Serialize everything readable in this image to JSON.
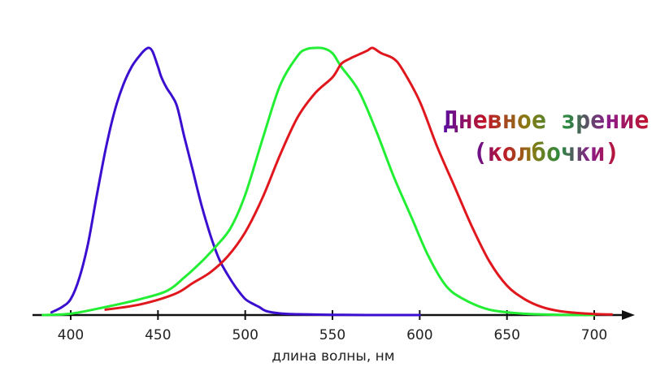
{
  "chart_data": {
    "type": "line",
    "title": "",
    "xlabel": "длина волны, нм",
    "ylabel": "",
    "xlim": [
      380,
      720
    ],
    "ylim": [
      0,
      1
    ],
    "xticks": [
      400,
      450,
      500,
      550,
      600,
      650,
      700
    ],
    "grid": false,
    "legend": "none",
    "annotation": {
      "line1": "Дневное зрение",
      "line2": "(колбочки)"
    },
    "series": [
      {
        "color": "#3b0fd0",
        "x": [
          389,
          395,
          400,
          405,
          410,
          415,
          420,
          425,
          430,
          435,
          440,
          443,
          445,
          447,
          450,
          452,
          455,
          458,
          461,
          465,
          470,
          475,
          480,
          485,
          490,
          495,
          500,
          505,
          508,
          512,
          520,
          530,
          550,
          570,
          600
        ],
        "y": [
          0.01,
          0.03,
          0.06,
          0.14,
          0.27,
          0.45,
          0.62,
          0.76,
          0.86,
          0.93,
          0.975,
          0.995,
          1.0,
          0.985,
          0.93,
          0.89,
          0.85,
          0.82,
          0.78,
          0.67,
          0.54,
          0.41,
          0.3,
          0.21,
          0.15,
          0.1,
          0.06,
          0.04,
          0.03,
          0.015,
          0.006,
          0.003,
          0.001,
          0.0,
          0.0
        ]
      },
      {
        "color": "#22ee33",
        "x": [
          384,
          400,
          420,
          440,
          455,
          465,
          475,
          485,
          492,
          500,
          510,
          520,
          530,
          535,
          540,
          545,
          550,
          555,
          565,
          575,
          585,
          595,
          605,
          615,
          625,
          640,
          660,
          680,
          700
        ],
        "y": [
          0.0,
          0.005,
          0.03,
          0.06,
          0.09,
          0.14,
          0.2,
          0.27,
          0.33,
          0.45,
          0.66,
          0.86,
          0.97,
          0.995,
          1.0,
          0.998,
          0.98,
          0.93,
          0.84,
          0.69,
          0.52,
          0.37,
          0.22,
          0.11,
          0.06,
          0.02,
          0.005,
          0.001,
          0.0
        ]
      },
      {
        "color": "#e0171d",
        "x": [
          420,
          440,
          460,
          470,
          480,
          490,
          500,
          510,
          520,
          530,
          540,
          550,
          555,
          560,
          565,
          570,
          573,
          578,
          585,
          590,
          600,
          610,
          620,
          630,
          640,
          650,
          660,
          670,
          680,
          690,
          700,
          710
        ],
        "y": [
          0.02,
          0.04,
          0.08,
          0.12,
          0.16,
          0.22,
          0.31,
          0.44,
          0.6,
          0.74,
          0.83,
          0.89,
          0.94,
          0.96,
          0.975,
          0.99,
          1.0,
          0.98,
          0.96,
          0.92,
          0.8,
          0.63,
          0.48,
          0.33,
          0.2,
          0.11,
          0.06,
          0.03,
          0.015,
          0.008,
          0.004,
          0.002
        ]
      }
    ]
  }
}
